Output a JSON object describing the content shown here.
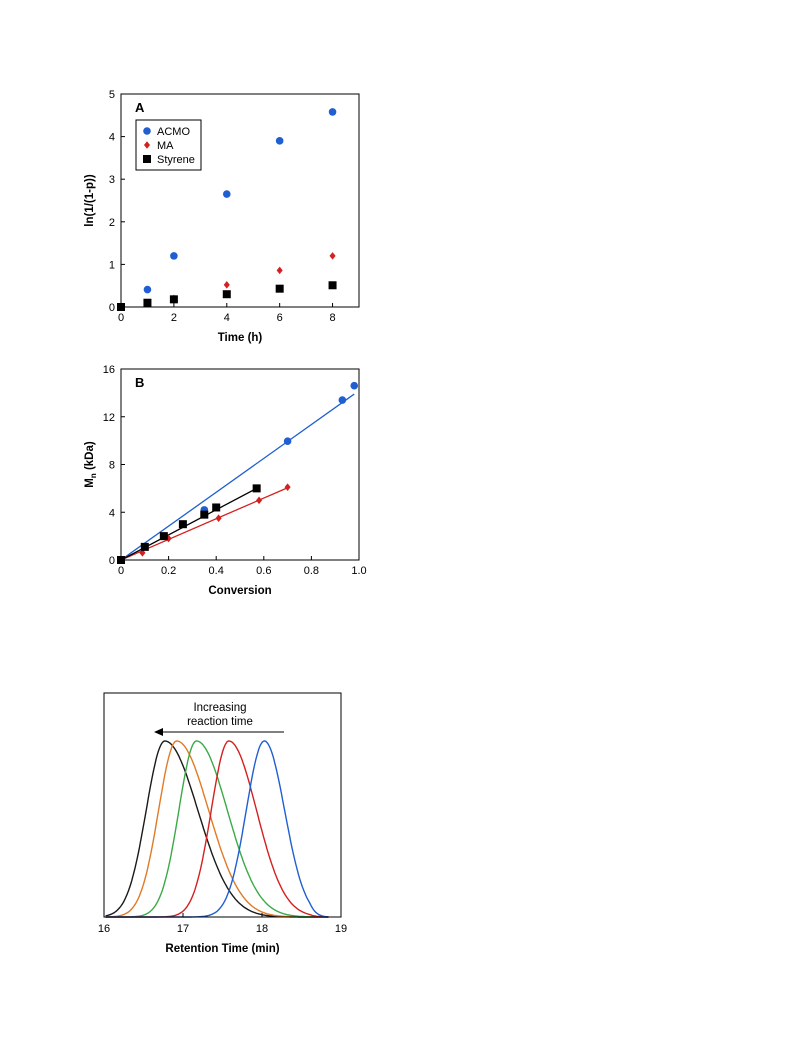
{
  "chart_data": [
    {
      "type": "scatter",
      "panel_label": "A",
      "title": "",
      "xlabel": "Time (h)",
      "ylabel": "ln(1/(1-p))",
      "xlim": [
        0,
        9
      ],
      "ylim": [
        0,
        5
      ],
      "xticks": [
        0,
        2,
        4,
        6,
        8
      ],
      "yticks": [
        0,
        1,
        2,
        3,
        4,
        5
      ],
      "legend": "top-left",
      "grid": false,
      "series": [
        {
          "name": "ACMO",
          "color": "#1f5fd1",
          "marker": "circle",
          "x": [
            0,
            1,
            2,
            4,
            6,
            8
          ],
          "y": [
            0,
            0.41,
            1.2,
            2.65,
            3.9,
            4.58
          ]
        },
        {
          "name": "MA",
          "color": "#d42020",
          "marker": "diamond",
          "x": [
            0,
            1,
            2,
            4,
            6,
            8
          ],
          "y": [
            0,
            0.09,
            0.2,
            0.52,
            0.86,
            1.2
          ]
        },
        {
          "name": "Styrene",
          "color": "#000000",
          "marker": "square",
          "x": [
            0,
            1,
            2,
            4,
            6,
            8
          ],
          "y": [
            0,
            0.1,
            0.18,
            0.3,
            0.43,
            0.51
          ]
        }
      ]
    },
    {
      "type": "scatter",
      "panel_label": "B",
      "title": "",
      "xlabel": "Conversion",
      "ylabel_main": "M",
      "ylabel_sub": "n",
      "ylabel_unit": " (kDa)",
      "xlim": [
        0,
        1.0
      ],
      "ylim": [
        0,
        16
      ],
      "xticks": [
        "0",
        "0.2",
        "0.4",
        "0.6",
        "0.8",
        "1.0"
      ],
      "yticks": [
        0,
        4,
        8,
        12,
        16
      ],
      "grid": false,
      "series": [
        {
          "marker": "circle",
          "color": "#1f5fd1",
          "x": [
            0,
            0.35,
            0.7,
            0.93,
            0.98
          ],
          "y": [
            0,
            4.2,
            9.95,
            13.4,
            14.6
          ],
          "fit": [
            [
              0,
              0
            ],
            [
              0.98,
              13.9
            ]
          ]
        },
        {
          "marker": "diamond",
          "color": "#d42020",
          "x": [
            0,
            0.09,
            0.2,
            0.41,
            0.58,
            0.7
          ],
          "y": [
            0,
            0.6,
            1.8,
            3.5,
            5.0,
            6.1
          ],
          "fit": [
            [
              0,
              0
            ],
            [
              0.7,
              6.05
            ]
          ]
        },
        {
          "marker": "square",
          "color": "#000000",
          "x": [
            0,
            0.1,
            0.18,
            0.26,
            0.35,
            0.4,
            0.57
          ],
          "y": [
            0,
            1.1,
            2.0,
            3.0,
            3.8,
            4.4,
            6.0
          ],
          "fit": [
            [
              0,
              0
            ],
            [
              0.57,
              6.0
            ]
          ]
        }
      ]
    },
    {
      "type": "line",
      "title": "",
      "xlabel": "Retention Time (min)",
      "xlim": [
        16,
        19
      ],
      "xticks": [
        16,
        17,
        18,
        19
      ],
      "annotation": [
        "Increasing",
        "reaction time"
      ],
      "series": [
        {
          "color": "#1a1a1a",
          "peak": 16.77,
          "left_width": 0.35,
          "right_width": 0.62,
          "end": 18.85
        },
        {
          "color": "#e07a26",
          "peak": 16.92,
          "left_width": 0.34,
          "right_width": 0.6,
          "end": 18.85
        },
        {
          "color": "#3aaa48",
          "peak": 17.17,
          "left_width": 0.33,
          "right_width": 0.58,
          "end": 18.85
        },
        {
          "color": "#d42020",
          "peak": 17.58,
          "left_width": 0.33,
          "right_width": 0.52,
          "end": 18.85
        },
        {
          "color": "#1f5fd1",
          "peak": 18.03,
          "left_width": 0.34,
          "right_width": 0.38,
          "end": 18.85
        }
      ]
    }
  ]
}
